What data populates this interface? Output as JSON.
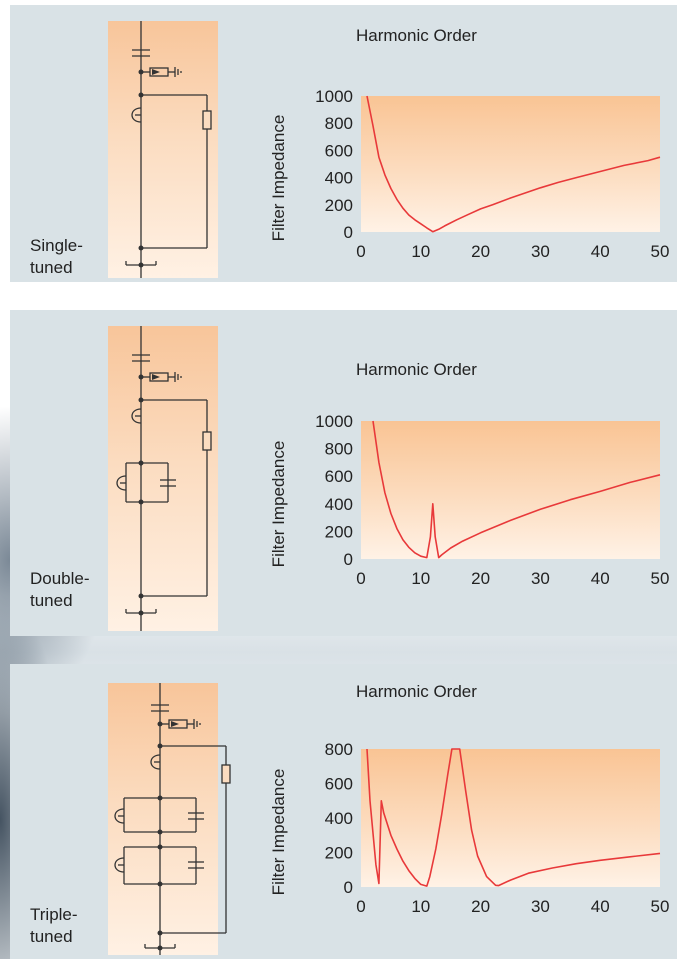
{
  "chart_data": [
    {
      "type": "line",
      "title": "Harmonic Order",
      "ylabel": "Filter Impedance",
      "xlim": [
        0,
        50
      ],
      "ylim": [
        0,
        1000
      ],
      "x_ticks": [
        "0",
        "10",
        "20",
        "30",
        "40",
        "50"
      ],
      "y_ticks": [
        "0",
        "200",
        "400",
        "600",
        "800",
        "1000"
      ],
      "filter_label": "Single-\ntuned",
      "line_color": "#e8393a",
      "series": [
        {
          "x": [
            1,
            2,
            3,
            4,
            5,
            6,
            7,
            8,
            9,
            10,
            11,
            12,
            13,
            14,
            16,
            18,
            20,
            22,
            25,
            28,
            30,
            33,
            36,
            40,
            44,
            48,
            50
          ],
          "y": [
            1000,
            780,
            550,
            420,
            320,
            240,
            175,
            125,
            90,
            60,
            30,
            2,
            20,
            45,
            90,
            130,
            170,
            200,
            250,
            295,
            325,
            365,
            400,
            445,
            490,
            525,
            550
          ]
        }
      ]
    },
    {
      "type": "line",
      "title": "Harmonic Order",
      "ylabel": "Filter Impedance",
      "xlim": [
        0,
        50
      ],
      "ylim": [
        0,
        1000
      ],
      "x_ticks": [
        "0",
        "10",
        "20",
        "30",
        "40",
        "50"
      ],
      "y_ticks": [
        "0",
        "200",
        "400",
        "600",
        "800",
        "1000"
      ],
      "filter_label": "Double-\ntuned",
      "line_color": "#e8393a",
      "series": [
        {
          "x": [
            2,
            3,
            4,
            5,
            6,
            7,
            8,
            9,
            10,
            11,
            11.6,
            12,
            12.4,
            13,
            13.5,
            15,
            17,
            20,
            25,
            30,
            35,
            40,
            45,
            50
          ],
          "y": [
            1000,
            700,
            480,
            330,
            220,
            140,
            85,
            45,
            20,
            10,
            160,
            400,
            160,
            10,
            30,
            80,
            130,
            190,
            280,
            360,
            430,
            490,
            555,
            610
          ]
        }
      ]
    },
    {
      "type": "line",
      "title": "Harmonic Order",
      "ylabel": "Filter Impedance",
      "xlim": [
        0,
        50
      ],
      "ylim": [
        0,
        800
      ],
      "x_ticks": [
        "0",
        "10",
        "20",
        "30",
        "40",
        "50"
      ],
      "y_ticks": [
        "0",
        "200",
        "400",
        "600",
        "800"
      ],
      "filter_label": "Triple-\ntuned",
      "line_color": "#e8393a",
      "series": [
        {
          "x": [
            1,
            1.5,
            2.5,
            3,
            3.4,
            3.8,
            5,
            6,
            7,
            8,
            9,
            10,
            11,
            11.5,
            12.5,
            13.5,
            14.5,
            15.2,
            16.5,
            17.5,
            18.5,
            19.5,
            21,
            22.5,
            23,
            25,
            28,
            32,
            36,
            40,
            45,
            50
          ],
          "y": [
            800,
            500,
            130,
            20,
            500,
            430,
            300,
            220,
            150,
            95,
            50,
            15,
            5,
            60,
            220,
            420,
            650,
            800,
            800,
            560,
            330,
            180,
            60,
            10,
            8,
            40,
            80,
            110,
            135,
            155,
            175,
            195
          ]
        }
      ]
    }
  ]
}
